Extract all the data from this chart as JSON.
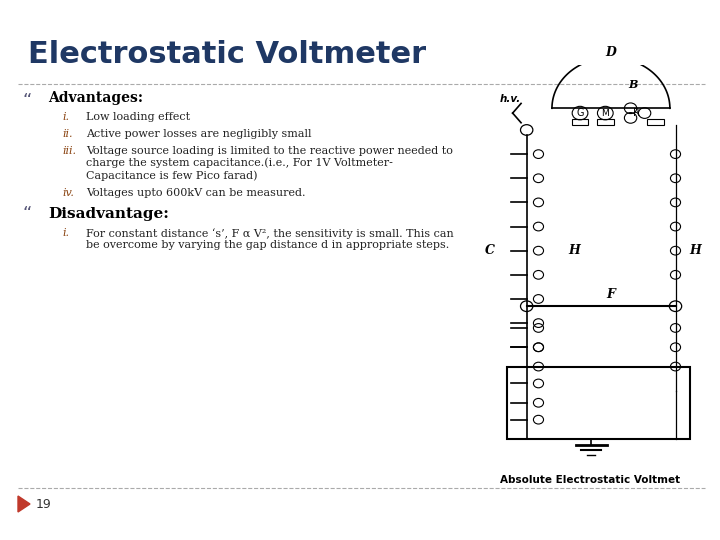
{
  "title": "Electrostatic Voltmeter",
  "title_color": "#1F3864",
  "title_fontsize": 22,
  "bg_color": "#ffffff",
  "dash_line_color": "#aaaaaa",
  "bullet_color": "#555577",
  "advantages_header": "Advantages:",
  "advantages_items": [
    [
      "i.",
      "Low loading effect"
    ],
    [
      "ii.",
      "Active power losses are negligibly small"
    ],
    [
      "iii.",
      "Voltage source loading is limited to the reactive power needed to\ncharge the system capacitance.(i.e., For 1V Voltmeter-\nCapacitance is few Pico farad)"
    ],
    [
      "iv.",
      "Voltages upto 600kV can be measured."
    ]
  ],
  "disadvantage_header": "Disadvantage:",
  "disadvantage_items": [
    [
      "i.",
      "For constant distance ‘s’, F α V², the sensitivity is small. This can\nbe overcome by varying the gap distance d in appropriate steps."
    ]
  ],
  "caption": "Absolute Electrostatic Voltmet",
  "page_number": "19",
  "arrow_color": "#c0392b",
  "section_header_fontsize": 10,
  "item_fontsize": 8,
  "num_color": "#8B4513",
  "header_color": "#000000",
  "item_color": "#222222"
}
